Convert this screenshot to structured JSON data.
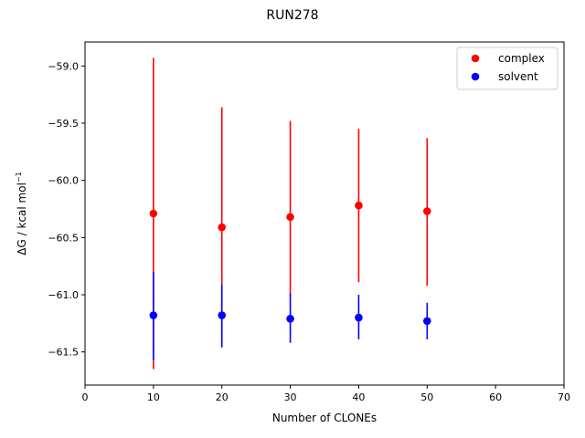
{
  "chart_data": {
    "type": "scatter",
    "title": "RUN278",
    "xlabel": "Number of CLONEs",
    "ylabel": "ΔG / kcal mol",
    "ylabel_sup": "−1",
    "xlim": [
      0,
      70
    ],
    "ylim": [
      -61.79,
      -58.79
    ],
    "xticks": [
      0,
      10,
      20,
      30,
      40,
      50,
      60,
      70
    ],
    "xtick_labels": [
      "0",
      "10",
      "20",
      "30",
      "40",
      "50",
      "60",
      "70"
    ],
    "yticks": [
      -59.0,
      -59.5,
      -60.0,
      -60.5,
      -61.0,
      -61.5
    ],
    "ytick_labels": [
      "−59.0",
      "−59.5",
      "−60.0",
      "−60.5",
      "−61.0",
      "−61.5"
    ],
    "grid": false,
    "legend_position": "top-right",
    "series": [
      {
        "name": "complex",
        "color": "#ff0000",
        "x": [
          10,
          20,
          30,
          40,
          50
        ],
        "y": [
          -60.29,
          -60.41,
          -60.32,
          -60.22,
          -60.27
        ],
        "err_low": [
          -61.65,
          -61.46,
          -61.01,
          -60.89,
          -60.92
        ],
        "err_high": [
          -58.93,
          -59.36,
          -59.48,
          -59.55,
          -59.63
        ]
      },
      {
        "name": "solvent",
        "color": "#0000ff",
        "x": [
          10,
          20,
          30,
          40,
          50
        ],
        "y": [
          -61.18,
          -61.18,
          -61.21,
          -61.2,
          -61.23
        ],
        "err_low": [
          -61.57,
          -61.46,
          -61.42,
          -61.39,
          -61.39
        ],
        "err_high": [
          -60.8,
          -60.91,
          -60.99,
          -61.0,
          -61.07
        ]
      }
    ]
  }
}
